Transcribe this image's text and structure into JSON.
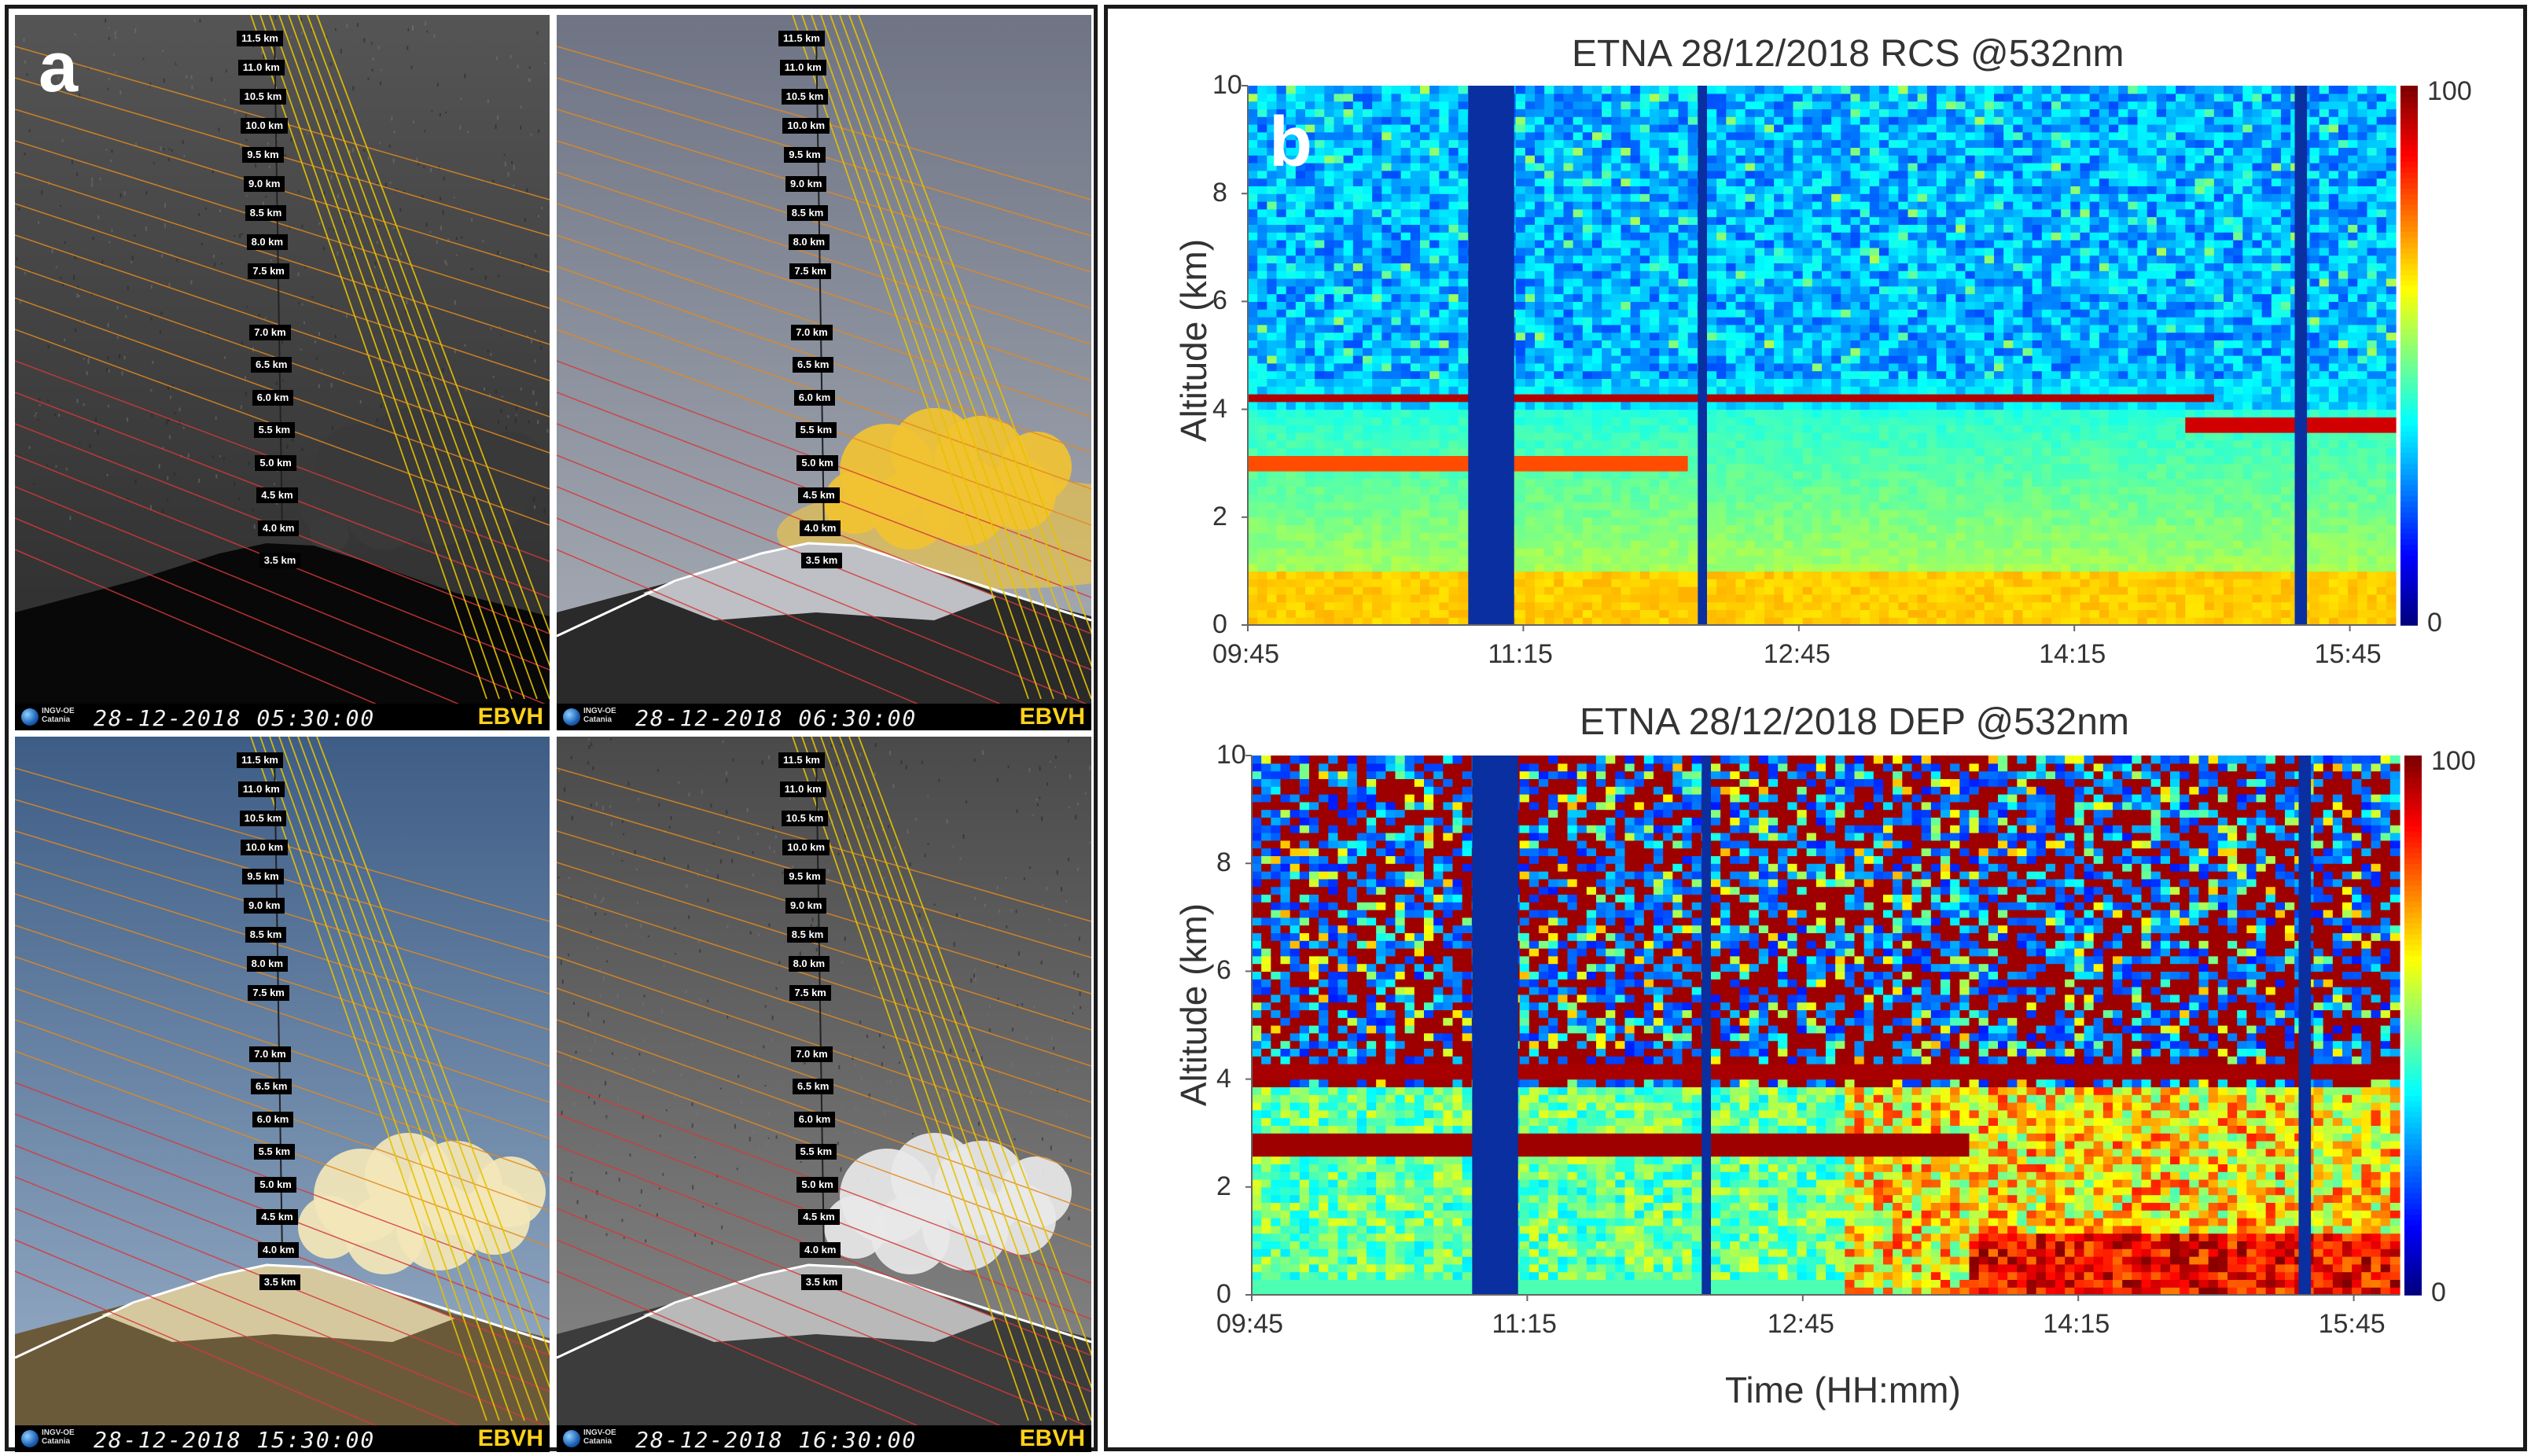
{
  "panel_a": {
    "letter": "a",
    "km_labels": [
      "11.5 km",
      "11.0 km",
      "10.5 km",
      "10.0 km",
      "9.5 km",
      "9.0 km",
      "8.5 km",
      "8.0 km",
      "7.5 km",
      "7.0 km",
      "6.5 km",
      "6.0 km",
      "5.5 km",
      "5.0 km",
      "4.5 km",
      "4.0 km",
      "3.5 km"
    ],
    "cameras": [
      {
        "timestamp": "28-12-2018 05:30:00",
        "code": "EBVH",
        "org": "INGV-OE\nCatania",
        "style": "night"
      },
      {
        "timestamp": "28-12-2018 06:30:00",
        "code": "EBVH",
        "org": "INGV-OE\nCatania",
        "style": "dawn"
      },
      {
        "timestamp": "28-12-2018 15:30:00",
        "code": "EBVH",
        "org": "INGV-OE\nCatania",
        "style": "day"
      },
      {
        "timestamp": "28-12-2018 16:30:00",
        "code": "EBVH",
        "org": "INGV-OE\nCatania",
        "style": "gray"
      }
    ]
  },
  "panel_b": {
    "letter": "b"
  },
  "chart_data": [
    {
      "type": "heatmap",
      "title": "ETNA 28/12/2018 RCS @532nm",
      "xlabel": "",
      "ylabel": "Altitude (km)",
      "x_ticks": [
        "09:45",
        "11:15",
        "12:45",
        "14:15",
        "15:45"
      ],
      "y_ticks": [
        0,
        2,
        4,
        6,
        8,
        10
      ],
      "ylim": [
        0,
        10
      ],
      "colorbar": {
        "min": 0,
        "max": 100,
        "ticks": [
          "0",
          "100"
        ],
        "colormap": "jet"
      },
      "features": {
        "no_data_periods": [
          "~10:57-11:12",
          "~12:12-12:15",
          "~15:27-15:31"
        ],
        "layers": [
          {
            "name": "aerosol layer",
            "altitude_km": 4.2,
            "time": "09:45-15:25",
            "signal": "high"
          },
          {
            "name": "lower plume layer",
            "altitude_km": 3.0,
            "time": "09:45-12:10",
            "signal": "medium"
          },
          {
            "name": "descending layer",
            "altitude_km": 3.7,
            "time": "14:50-16:00",
            "signal": "high"
          }
        ],
        "boundary_layer_top_km": 4.0
      }
    },
    {
      "type": "heatmap",
      "title": "ETNA 28/12/2018 DEP @532nm",
      "xlabel": "Time (HH:mm)",
      "ylabel": "Altitude (km)",
      "x_ticks": [
        "09:45",
        "11:15",
        "12:45",
        "14:15",
        "15:45"
      ],
      "y_ticks": [
        0,
        2,
        4,
        6,
        8,
        10
      ],
      "ylim": [
        0,
        10
      ],
      "colorbar": {
        "min": 0,
        "max": 100,
        "ticks": [
          "0",
          "100"
        ],
        "colormap": "jet"
      },
      "features": {
        "no_data_periods": [
          "~10:57-11:12",
          "~12:12-12:15",
          "~15:27-15:31"
        ],
        "layers": [
          {
            "name": "depolarizing layer",
            "altitude_km": 4.1,
            "time": "09:45-15:25",
            "signal": "high"
          },
          {
            "name": "depolarizing plume",
            "altitude_km": 2.8,
            "time": "09:45-13:40",
            "signal": "high"
          },
          {
            "name": "near-ground depolarization",
            "altitude_km": 0.5,
            "time": "13:40-16:00",
            "signal": "high"
          }
        ]
      }
    }
  ]
}
